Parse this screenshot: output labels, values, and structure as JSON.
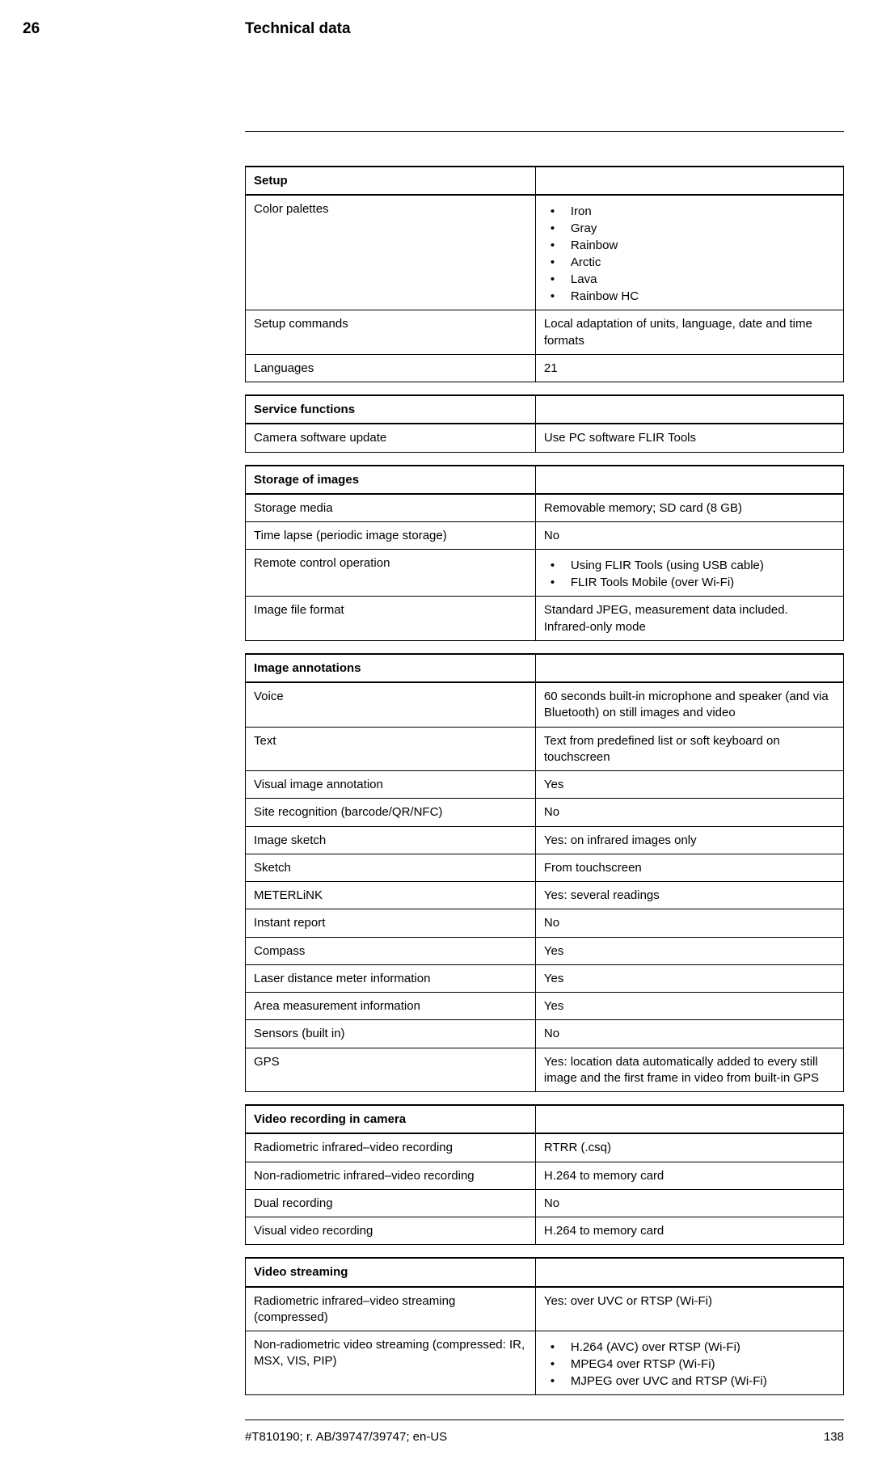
{
  "header": {
    "chapter_number": "26",
    "chapter_title": "Technical data"
  },
  "tables": [
    {
      "rows": [
        {
          "header": true,
          "label": "Setup",
          "value": ""
        },
        {
          "label": "Color palettes",
          "items": [
            "Iron",
            "Gray",
            "Rainbow",
            "Arctic",
            "Lava",
            "Rainbow HC"
          ]
        },
        {
          "label": "Setup commands",
          "value": "Local adaptation of units, language, date and time formats"
        },
        {
          "label": "Languages",
          "value": "21"
        }
      ]
    },
    {
      "rows": [
        {
          "header": true,
          "label": "Service functions",
          "value": ""
        },
        {
          "label": "Camera software update",
          "value": "Use PC software FLIR Tools"
        }
      ]
    },
    {
      "rows": [
        {
          "header": true,
          "label": "Storage of images",
          "value": ""
        },
        {
          "label": "Storage media",
          "value": "Removable memory; SD card (8 GB)"
        },
        {
          "label": "Time lapse (periodic image storage)",
          "value": "No"
        },
        {
          "label": "Remote control operation",
          "items": [
            "Using FLIR Tools (using USB cable)",
            "FLIR Tools Mobile (over Wi-Fi)"
          ]
        },
        {
          "label": "Image file format",
          "value": "Standard JPEG, measurement data included. Infrared-only mode"
        }
      ]
    },
    {
      "rows": [
        {
          "header": true,
          "label": "Image annotations",
          "value": ""
        },
        {
          "label": "Voice",
          "value": "60 seconds built-in microphone and speaker (and via Bluetooth) on still images and video"
        },
        {
          "label": "Text",
          "value": "Text from predefined list or soft keyboard on touchscreen"
        },
        {
          "label": "Visual image annotation",
          "value": "Yes"
        },
        {
          "label": "Site recognition (barcode/QR/NFC)",
          "value": "No"
        },
        {
          "label": "Image sketch",
          "value": "Yes: on infrared images only"
        },
        {
          "label": "Sketch",
          "value": "From touchscreen"
        },
        {
          "label": "METERLiNK",
          "value": "Yes: several readings"
        },
        {
          "label": "Instant report",
          "value": "No"
        },
        {
          "label": "Compass",
          "value": "Yes"
        },
        {
          "label": "Laser distance meter information",
          "value": "Yes"
        },
        {
          "label": "Area measurement information",
          "value": "Yes"
        },
        {
          "label": "Sensors (built in)",
          "value": "No"
        },
        {
          "label": "GPS",
          "value": "Yes: location data automatically added to every still image and the first frame in video from built-in GPS"
        }
      ]
    },
    {
      "rows": [
        {
          "header": true,
          "label": "Video recording in camera",
          "value": ""
        },
        {
          "label": "Radiometric infrared–video recording",
          "value": "RTRR (.csq)"
        },
        {
          "label": "Non-radiometric infrared–video recording",
          "value": "H.264 to memory card"
        },
        {
          "label": "Dual recording",
          "value": "No"
        },
        {
          "label": "Visual video recording",
          "value": "H.264 to memory card"
        }
      ]
    },
    {
      "rows": [
        {
          "header": true,
          "label": "Video streaming",
          "value": ""
        },
        {
          "label": "Radiometric infrared–video streaming (compressed)",
          "value": "Yes: over UVC or RTSP (Wi-Fi)"
        },
        {
          "label": "Non-radiometric video streaming (compressed: IR, MSX, VIS, PIP)",
          "items": [
            "H.264 (AVC) over RTSP (Wi-Fi)",
            "MPEG4 over RTSP (Wi-Fi)",
            "MJPEG over UVC and RTSP (Wi-Fi)"
          ]
        }
      ]
    }
  ],
  "footer": {
    "doc_id": "#T810190; r. AB/39747/39747; en-US",
    "page_number": "138"
  }
}
